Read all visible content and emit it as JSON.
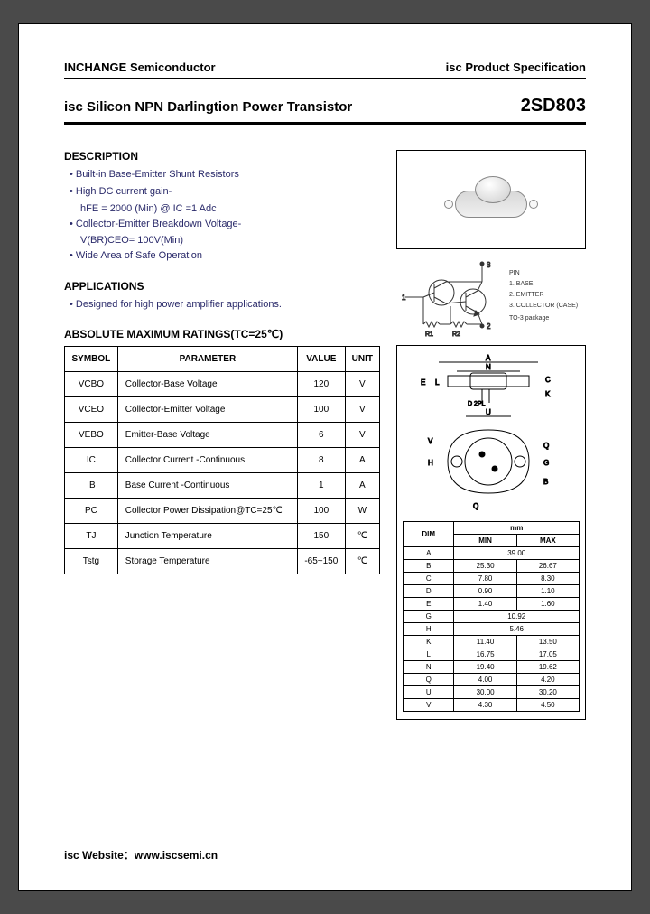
{
  "header": {
    "left": "INCHANGE Semiconductor",
    "right": "isc Product Specification"
  },
  "title": {
    "main": "isc Silicon NPN Darlingtion Power Transistor",
    "part": "2SD803"
  },
  "description": {
    "heading": "DESCRIPTION",
    "items": [
      "Built-in Base-Emitter Shunt Resistors",
      "High DC current gain-",
      "hFE = 2000 (Min) @ IC =1 Adc",
      "Collector-Emitter Breakdown Voltage-",
      "V(BR)CEO= 100V(Min)",
      "Wide Area of Safe Operation"
    ]
  },
  "applications": {
    "heading": "APPLICATIONS",
    "items": [
      "Designed for high power amplifier applications."
    ]
  },
  "ratings": {
    "heading": "ABSOLUTE MAXIMUM RATINGS(TC=25℃)",
    "columns": [
      "SYMBOL",
      "PARAMETER",
      "VALUE",
      "UNIT"
    ],
    "rows": [
      {
        "sym": "VCBO",
        "param": "Collector-Base Voltage",
        "value": "120",
        "unit": "V"
      },
      {
        "sym": "VCEO",
        "param": "Collector-Emitter Voltage",
        "value": "100",
        "unit": "V"
      },
      {
        "sym": "VEBO",
        "param": "Emitter-Base Voltage",
        "value": "6",
        "unit": "V"
      },
      {
        "sym": "IC",
        "param": "Collector Current -Continuous",
        "value": "8",
        "unit": "A"
      },
      {
        "sym": "IB",
        "param": "Base Current -Continuous",
        "value": "1",
        "unit": "A"
      },
      {
        "sym": "PC",
        "param": "Collector Power Dissipation@TC=25℃",
        "value": "100",
        "unit": "W"
      },
      {
        "sym": "TJ",
        "param": "Junction Temperature",
        "value": "150",
        "unit": "℃"
      },
      {
        "sym": "Tstg",
        "param": "Storage Temperature",
        "value": "-65~150",
        "unit": "℃"
      }
    ]
  },
  "pins": {
    "heading": "PIN",
    "items": [
      "1. BASE",
      "2. EMITTER",
      "3. COLLECTOR (CASE)",
      "TO-3 package"
    ]
  },
  "dimensions": {
    "unit_label": "mm",
    "columns": [
      "DIM",
      "MIN",
      "MAX"
    ],
    "rows": [
      {
        "dim": "A",
        "min": "39.00",
        "max": ""
      },
      {
        "dim": "B",
        "min": "25.30",
        "max": "26.67"
      },
      {
        "dim": "C",
        "min": "7.80",
        "max": "8.30"
      },
      {
        "dim": "D",
        "min": "0.90",
        "max": "1.10"
      },
      {
        "dim": "E",
        "min": "1.40",
        "max": "1.60"
      },
      {
        "dim": "G",
        "min": "10.92",
        "max": ""
      },
      {
        "dim": "H",
        "min": "5.46",
        "max": ""
      },
      {
        "dim": "K",
        "min": "11.40",
        "max": "13.50"
      },
      {
        "dim": "L",
        "min": "16.75",
        "max": "17.05"
      },
      {
        "dim": "N",
        "min": "19.40",
        "max": "19.62"
      },
      {
        "dim": "Q",
        "min": "4.00",
        "max": "4.20"
      },
      {
        "dim": "U",
        "min": "30.00",
        "max": "30.20"
      },
      {
        "dim": "V",
        "min": "4.30",
        "max": "4.50"
      }
    ]
  },
  "footer": "isc Website：www.iscsemi.cn",
  "colors": {
    "text": "#000000",
    "bullet_text": "#2a2a6a",
    "border": "#000000",
    "page_bg": "#ffffff",
    "outer_bg": "#4a4a4a"
  }
}
